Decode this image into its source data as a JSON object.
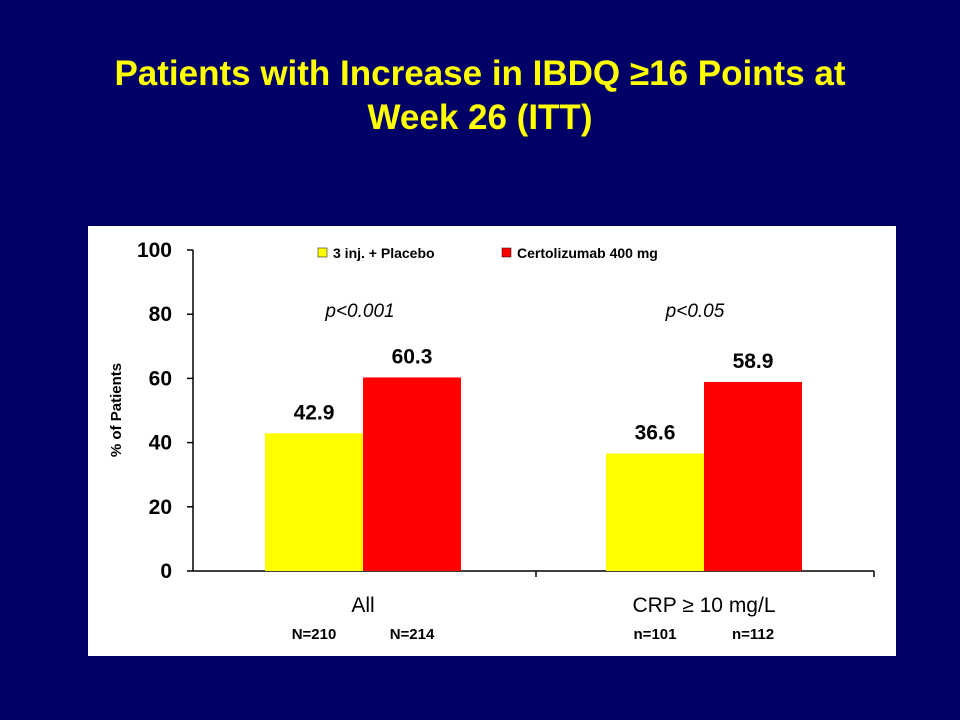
{
  "slide": {
    "title_line1": "Patients with Increase in IBDQ ≥16 Points at",
    "title_line2": "Week 26 (ITT)"
  },
  "chart_data": {
    "type": "bar",
    "title": "",
    "xlabel": "",
    "ylabel": "% of Patients",
    "ylim": [
      0,
      100
    ],
    "yticks": [
      0,
      20,
      40,
      60,
      80,
      100
    ],
    "grid": false,
    "legend_position": "top",
    "categories": [
      "All",
      "CRP ≥ 10 mg/L"
    ],
    "series": [
      {
        "name": "3 inj. + Placebo",
        "color": "#ffff00",
        "values": [
          42.9,
          36.6
        ],
        "labels": [
          "42.9",
          "36.6"
        ],
        "n_labels": [
          "N=210",
          "n=101"
        ]
      },
      {
        "name": "Certolizumab 400 mg",
        "color": "#ff0000",
        "values": [
          60.3,
          58.9
        ],
        "labels": [
          "60.3",
          "58.9"
        ],
        "n_labels": [
          "N=214",
          "n=112"
        ]
      }
    ],
    "annotations": [
      "p<0.001",
      "p<0.05"
    ],
    "colors": {
      "plot_background": "#ffffff",
      "slide_background": "#000066",
      "text": "#000000",
      "title": "#ffff00"
    }
  }
}
